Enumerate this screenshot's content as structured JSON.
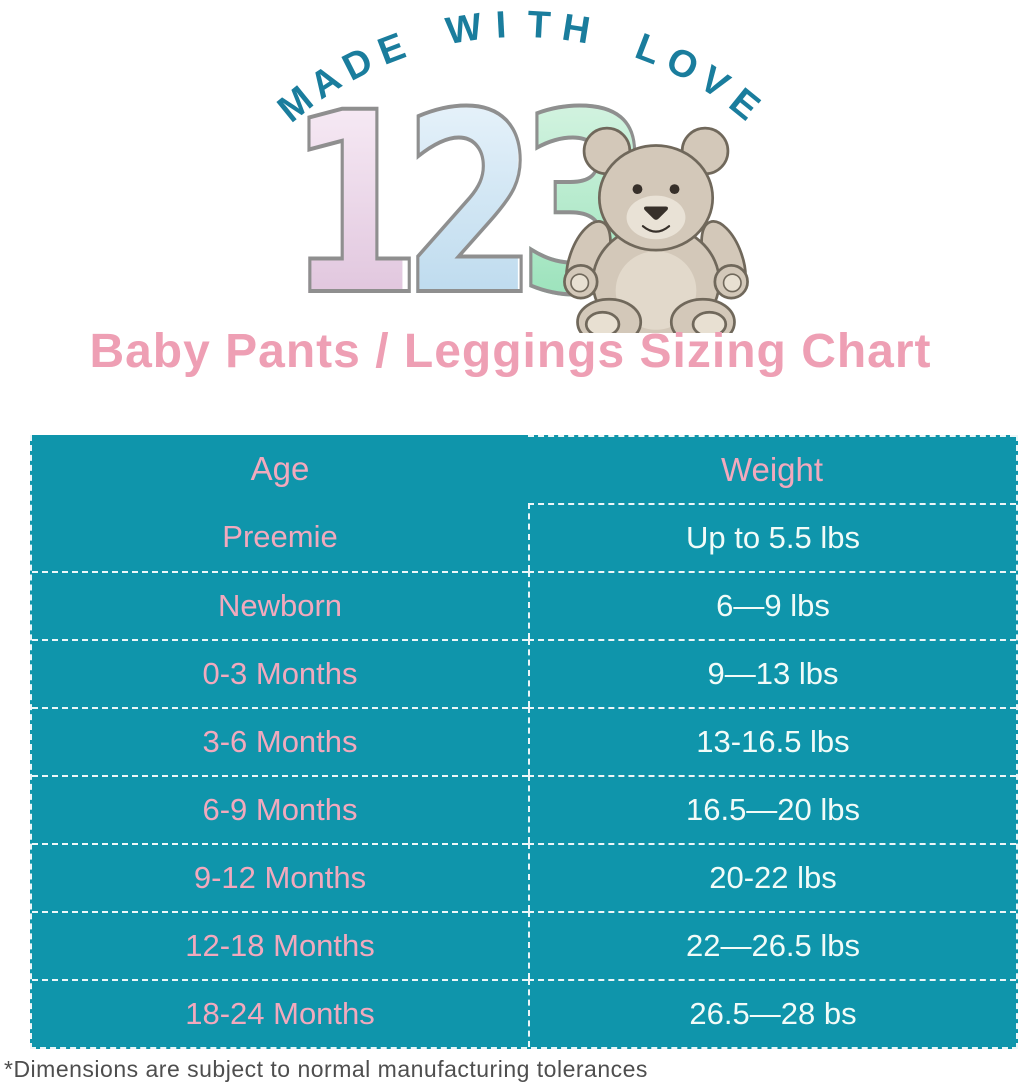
{
  "arch": {
    "text": "MADE WITH LOVE"
  },
  "logo": {
    "digits": [
      {
        "char": "1",
        "from": "#f9eef7",
        "to": "#ddc0da"
      },
      {
        "char": "2",
        "from": "#eaf4fb",
        "to": "#b7d7ec"
      },
      {
        "char": "3",
        "from": "#d9f5e4",
        "to": "#93e0b6"
      }
    ],
    "bear_icon": "teddy-bear"
  },
  "title": "Baby Pants / Leggings Sizing Chart",
  "table": {
    "headers": {
      "age": "Age",
      "weight": "Weight"
    },
    "rows": [
      {
        "age": "Preemie",
        "weight": "Up to 5.5 lbs"
      },
      {
        "age": "Newborn",
        "weight": "6—9 lbs"
      },
      {
        "age": "0-3 Months",
        "weight": "9—13 lbs"
      },
      {
        "age": "3-6 Months",
        "weight": "13-16.5 lbs"
      },
      {
        "age": "6-9 Months",
        "weight": "16.5—20 lbs"
      },
      {
        "age": "9-12 Months",
        "weight": "20-22 lbs"
      },
      {
        "age": "12-18 Months",
        "weight": "22—26.5 lbs"
      },
      {
        "age": "18-24 Months",
        "weight": "26.5—28 bs"
      }
    ]
  },
  "footnote": "*Dimensions are subject to normal manufacturing tolerances",
  "colors": {
    "table_background": "#0f95ab",
    "arch_text": "#1a7d9d",
    "pink_text": "#ee9fb4",
    "weight_text": "#f1fbf8",
    "digit_outline": "#8f8f8f",
    "footnote_text": "#4e4e4e",
    "divider": "#ffffff"
  }
}
